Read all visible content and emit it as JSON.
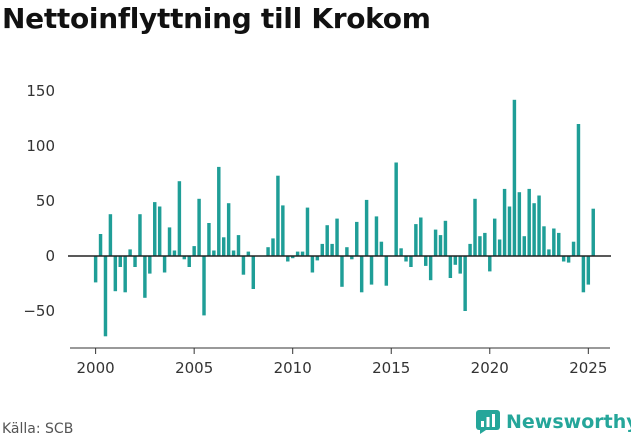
{
  "header": {
    "title": "Nettoinflyttning till Krokom"
  },
  "footer": {
    "source": "Källa: SCB",
    "brand": "Newsworthy"
  },
  "colors": {
    "bar": "#1f9e97",
    "zero_line": "#222222",
    "axis": "#333333",
    "brand": "#25a69a"
  },
  "chart_data": {
    "type": "bar",
    "title": "Nettoinflyttning till Krokom",
    "xlabel": "",
    "ylabel": "",
    "x_start": 2000,
    "x_step": 0.25,
    "xlim": [
      1998.7,
      2026.1
    ],
    "ylim": [
      -85,
      155
    ],
    "yticks": [
      -50,
      0,
      50,
      100,
      150
    ],
    "xticks": [
      2000,
      2005,
      2010,
      2015,
      2020,
      2025
    ],
    "grid": false,
    "values": [
      -24,
      20,
      -73,
      38,
      -32,
      -10,
      -33,
      6,
      -10,
      38,
      -38,
      -16,
      49,
      45,
      -15,
      26,
      5,
      68,
      -3,
      -10,
      9,
      52,
      -54,
      30,
      5,
      81,
      17,
      48,
      5,
      19,
      -17,
      4,
      -30,
      0,
      0,
      8,
      16,
      73,
      46,
      -5,
      -2,
      4,
      4,
      44,
      -15,
      -4,
      11,
      28,
      11,
      34,
      -28,
      8,
      -3,
      31,
      -33,
      51,
      -26,
      36,
      13,
      -27,
      0,
      85,
      7,
      -5,
      -10,
      29,
      35,
      -9,
      -22,
      24,
      19,
      32,
      -20,
      -8,
      -16,
      -50,
      11,
      52,
      18,
      21,
      -14,
      34,
      15,
      61,
      45,
      142,
      58,
      18,
      61,
      48,
      55,
      27,
      6,
      25,
      21,
      -5,
      -6,
      13,
      120,
      -33,
      -26,
      43
    ]
  }
}
